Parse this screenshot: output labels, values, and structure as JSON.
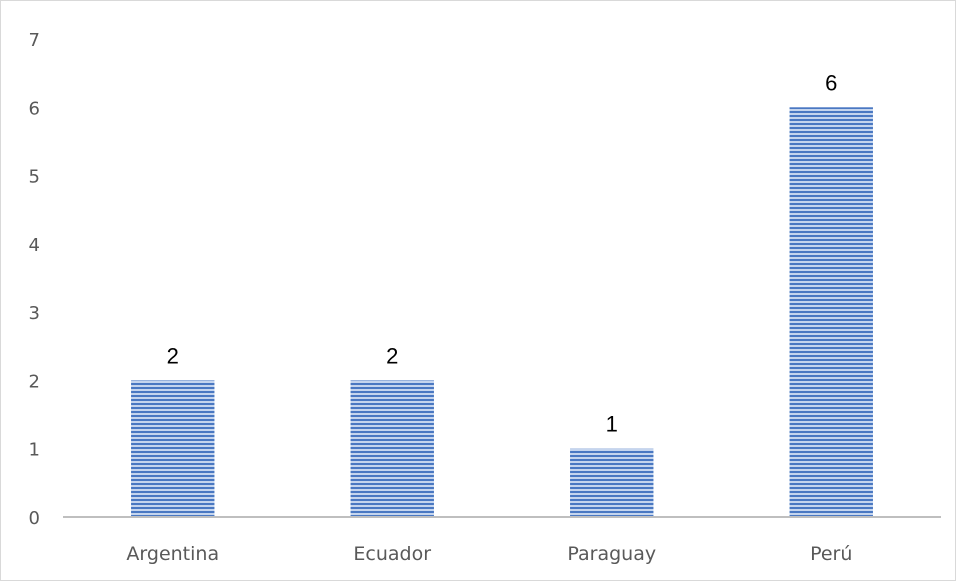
{
  "chart_data": {
    "type": "bar",
    "categories": [
      "Argentina",
      "Ecuador",
      "Paraguay",
      "Perú"
    ],
    "values": [
      2,
      2,
      1,
      6
    ],
    "data_labels": [
      "2",
      "2",
      "1",
      "6"
    ],
    "title": "",
    "xlabel": "",
    "ylabel": "",
    "ylim": [
      0,
      7
    ],
    "yticks": [
      "0",
      "1",
      "2",
      "3",
      "4",
      "5",
      "6",
      "7"
    ],
    "grid": false,
    "legend": "none",
    "colors": {
      "bar_fill": "#c5d5ee",
      "bar_stripe": "#4a78c2",
      "axis": "#bfbfbf",
      "tick_text": "#595959",
      "data_label_text": "#000000"
    }
  }
}
